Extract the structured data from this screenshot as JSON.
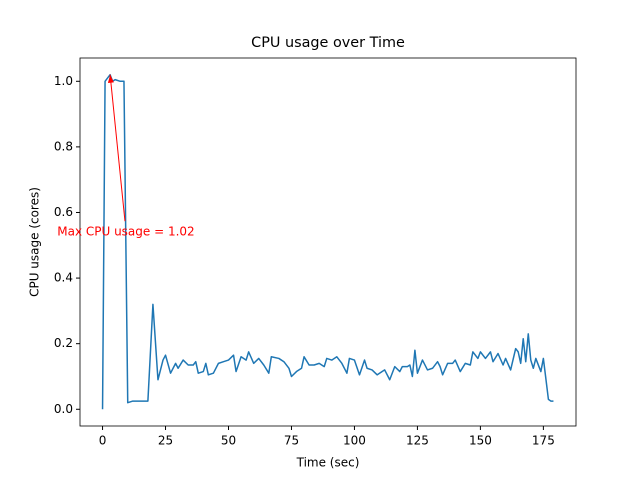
{
  "chart_data": {
    "type": "line",
    "title": "CPU usage over Time",
    "x_label": "Time (sec)",
    "y_label": "CPU usage (cores)",
    "series": [
      {
        "name": "CPU usage",
        "color": "#1f77b4",
        "x": [
          0,
          1,
          3,
          4,
          5,
          7,
          8.5,
          10,
          12,
          15,
          18,
          20,
          22,
          24,
          25,
          27,
          29,
          30,
          32,
          34,
          36,
          37,
          38,
          40,
          41,
          42,
          44,
          46,
          48,
          50,
          52,
          53,
          55,
          57,
          58,
          60,
          62,
          64,
          66,
          67,
          70,
          72,
          74,
          75,
          77,
          79,
          80,
          82,
          84,
          86,
          88,
          89,
          91,
          93,
          95,
          97,
          98,
          100,
          102,
          104,
          105,
          107,
          109,
          111,
          112,
          114,
          116,
          118,
          119,
          121,
          122,
          123,
          124,
          125,
          127,
          129,
          131,
          133,
          134,
          135,
          137,
          139,
          140,
          142,
          144,
          146,
          147,
          149,
          150,
          152,
          154,
          155,
          157,
          159,
          160,
          162,
          164,
          165,
          166,
          167,
          168,
          169,
          170,
          171,
          172,
          174,
          175,
          177,
          178,
          179
        ],
        "values": [
          0.0,
          1.0,
          1.02,
          1.0,
          1.005,
          1.0,
          1.0,
          0.02,
          0.025,
          0.025,
          0.025,
          0.32,
          0.09,
          0.15,
          0.165,
          0.11,
          0.14,
          0.125,
          0.15,
          0.135,
          0.135,
          0.145,
          0.11,
          0.115,
          0.14,
          0.105,
          0.11,
          0.14,
          0.145,
          0.15,
          0.165,
          0.115,
          0.16,
          0.15,
          0.175,
          0.14,
          0.155,
          0.135,
          0.11,
          0.16,
          0.155,
          0.145,
          0.125,
          0.1,
          0.115,
          0.125,
          0.16,
          0.135,
          0.135,
          0.14,
          0.13,
          0.155,
          0.15,
          0.16,
          0.14,
          0.11,
          0.155,
          0.15,
          0.105,
          0.15,
          0.125,
          0.12,
          0.105,
          0.115,
          0.12,
          0.09,
          0.13,
          0.115,
          0.13,
          0.13,
          0.135,
          0.1,
          0.18,
          0.11,
          0.15,
          0.12,
          0.125,
          0.145,
          0.13,
          0.105,
          0.14,
          0.14,
          0.15,
          0.115,
          0.14,
          0.135,
          0.175,
          0.155,
          0.175,
          0.155,
          0.175,
          0.145,
          0.17,
          0.135,
          0.155,
          0.12,
          0.185,
          0.175,
          0.14,
          0.215,
          0.145,
          0.23,
          0.15,
          0.125,
          0.155,
          0.115,
          0.155,
          0.03,
          0.025,
          0.025
        ]
      }
    ],
    "xlim": [
      -8.95,
      187.95
    ],
    "xticks": [
      0,
      25,
      50,
      75,
      100,
      125,
      150,
      175
    ],
    "ylim": [
      -0.051,
      1.071
    ],
    "yticks": [
      {
        "value": 0,
        "label": "0.0"
      },
      0.2,
      0.4,
      0.6,
      0.8,
      {
        "value": 1,
        "label": "1.0"
      }
    ],
    "annotation": {
      "text": "Max CPU usage = 1.02",
      "x": 3,
      "y": 1.02,
      "text_x": 9.3,
      "text_y": 0.54,
      "color": "red"
    }
  }
}
